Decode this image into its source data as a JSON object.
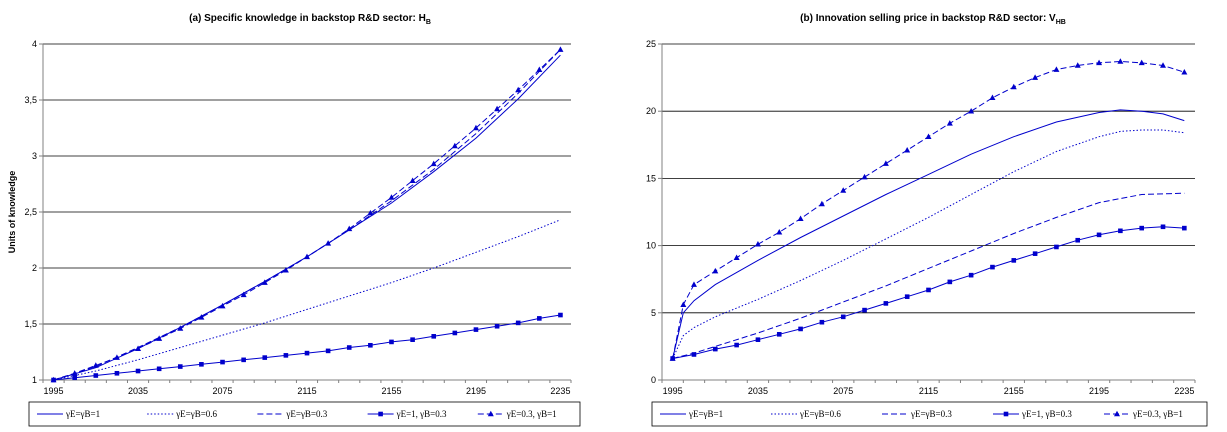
{
  "chart_data": [
    {
      "type": "line",
      "title": "(a) Specific knowledge in backstop R&D sector: H",
      "title_sub": "B",
      "xlabel": "",
      "ylabel": "Units of knowledge",
      "xlim": [
        1990,
        2240
      ],
      "ylim": [
        1,
        4
      ],
      "x_ticks": [
        1995,
        2035,
        2075,
        2115,
        2155,
        2195,
        2235
      ],
      "y_ticks": [
        1,
        1.5,
        2,
        2.5,
        3,
        3.5,
        4
      ],
      "y_tick_labels": [
        "1",
        "1,5",
        "2",
        "2,5",
        "3",
        "3,5",
        "4"
      ],
      "grid": "horizontal",
      "legend": "bottom",
      "series": [
        {
          "name": "γE=γB=1",
          "style": "solid",
          "marker": "none",
          "color": "#0000cc",
          "x": [
            1995,
            2015,
            2035,
            2055,
            2075,
            2095,
            2115,
            2135,
            2155,
            2175,
            2195,
            2215,
            2235
          ],
          "values": [
            1.0,
            1.11,
            1.28,
            1.47,
            1.67,
            1.88,
            2.1,
            2.34,
            2.58,
            2.86,
            3.16,
            3.51,
            3.9
          ]
        },
        {
          "name": "γE=γB=0.6",
          "style": "dotted",
          "marker": "none",
          "color": "#0000cc",
          "x": [
            1995,
            2015,
            2035,
            2055,
            2075,
            2095,
            2115,
            2135,
            2155,
            2175,
            2195,
            2215,
            2235
          ],
          "values": [
            1.0,
            1.08,
            1.18,
            1.29,
            1.4,
            1.51,
            1.63,
            1.75,
            1.87,
            2.0,
            2.14,
            2.28,
            2.43
          ]
        },
        {
          "name": "γE=γB=0.3",
          "style": "dashed",
          "marker": "none",
          "color": "#0000cc",
          "x": [
            1995,
            2015,
            2035,
            2055,
            2075,
            2095,
            2115,
            2135,
            2155,
            2175,
            2195,
            2215,
            2235
          ],
          "values": [
            1.0,
            1.12,
            1.29,
            1.47,
            1.67,
            1.88,
            2.1,
            2.34,
            2.6,
            2.88,
            3.2,
            3.56,
            3.95
          ]
        },
        {
          "name": "γE=1, γB=0.3",
          "style": "solid",
          "marker": "square",
          "color": "#0000cc",
          "x": [
            1995,
            2005,
            2015,
            2025,
            2035,
            2045,
            2055,
            2065,
            2075,
            2085,
            2095,
            2105,
            2115,
            2125,
            2135,
            2145,
            2155,
            2165,
            2175,
            2185,
            2195,
            2205,
            2215,
            2225,
            2235
          ],
          "values": [
            1.0,
            1.02,
            1.04,
            1.06,
            1.08,
            1.1,
            1.12,
            1.14,
            1.16,
            1.18,
            1.2,
            1.22,
            1.24,
            1.26,
            1.29,
            1.31,
            1.34,
            1.36,
            1.39,
            1.42,
            1.45,
            1.48,
            1.51,
            1.55,
            1.58
          ]
        },
        {
          "name": "γE=0.3, γB=1",
          "style": "dashed",
          "marker": "triangle",
          "color": "#0000cc",
          "x": [
            1995,
            2005,
            2015,
            2025,
            2035,
            2045,
            2055,
            2065,
            2075,
            2085,
            2095,
            2105,
            2115,
            2125,
            2135,
            2145,
            2155,
            2165,
            2175,
            2185,
            2195,
            2205,
            2215,
            2225,
            2235
          ],
          "values": [
            1.0,
            1.06,
            1.13,
            1.2,
            1.28,
            1.37,
            1.46,
            1.56,
            1.66,
            1.76,
            1.87,
            1.98,
            2.1,
            2.22,
            2.35,
            2.49,
            2.63,
            2.78,
            2.93,
            3.09,
            3.25,
            3.42,
            3.59,
            3.77,
            3.95
          ]
        }
      ]
    },
    {
      "type": "line",
      "title": "(b) Innovation selling price in backstop R&D sector: V",
      "title_sub": "HB",
      "xlabel": "",
      "ylabel": "",
      "xlim": [
        1990,
        2240
      ],
      "ylim": [
        0,
        25
      ],
      "x_ticks": [
        1995,
        2035,
        2075,
        2115,
        2155,
        2195,
        2235
      ],
      "y_ticks": [
        0,
        5,
        10,
        15,
        20,
        25
      ],
      "y_tick_labels": [
        "0",
        "5",
        "10",
        "15",
        "20",
        "25"
      ],
      "grid": "horizontal",
      "legend": "bottom",
      "series": [
        {
          "name": "γE=γB=1",
          "style": "solid",
          "marker": "none",
          "color": "#0000cc",
          "x": [
            1995,
            2000,
            2005,
            2015,
            2035,
            2055,
            2075,
            2095,
            2115,
            2135,
            2155,
            2175,
            2195,
            2205,
            2215,
            2225,
            2235
          ],
          "values": [
            1.6,
            5.0,
            5.9,
            7.1,
            8.9,
            10.6,
            12.2,
            13.8,
            15.3,
            16.8,
            18.1,
            19.2,
            19.9,
            20.1,
            20.0,
            19.8,
            19.3
          ]
        },
        {
          "name": "γE=γB=0.6",
          "style": "dotted",
          "marker": "none",
          "color": "#0000cc",
          "x": [
            1995,
            2000,
            2005,
            2015,
            2035,
            2055,
            2075,
            2095,
            2115,
            2135,
            2155,
            2175,
            2195,
            2205,
            2215,
            2225,
            2235
          ],
          "values": [
            1.6,
            3.3,
            3.9,
            4.7,
            6.0,
            7.4,
            8.9,
            10.5,
            12.1,
            13.8,
            15.5,
            17.0,
            18.1,
            18.5,
            18.6,
            18.6,
            18.4
          ]
        },
        {
          "name": "γE=γB=0.3",
          "style": "dashed",
          "marker": "none",
          "color": "#0000cc",
          "x": [
            1995,
            2005,
            2015,
            2035,
            2055,
            2075,
            2095,
            2115,
            2135,
            2155,
            2175,
            2195,
            2215,
            2235
          ],
          "values": [
            1.6,
            2.0,
            2.5,
            3.5,
            4.6,
            5.8,
            7.0,
            8.3,
            9.6,
            10.9,
            12.1,
            13.2,
            13.8,
            13.9
          ]
        },
        {
          "name": "γE=1, γB=0.3",
          "style": "solid",
          "marker": "square",
          "color": "#0000cc",
          "x": [
            1995,
            2005,
            2015,
            2025,
            2035,
            2045,
            2055,
            2065,
            2075,
            2085,
            2095,
            2105,
            2115,
            2125,
            2135,
            2145,
            2155,
            2165,
            2175,
            2185,
            2195,
            2205,
            2215,
            2225,
            2235
          ],
          "values": [
            1.6,
            1.9,
            2.3,
            2.6,
            3.0,
            3.4,
            3.8,
            4.3,
            4.7,
            5.2,
            5.7,
            6.2,
            6.7,
            7.3,
            7.8,
            8.4,
            8.9,
            9.4,
            9.9,
            10.4,
            10.8,
            11.1,
            11.3,
            11.4,
            11.3
          ]
        },
        {
          "name": "γE=0.3, γB=1",
          "style": "dashed",
          "marker": "triangle",
          "color": "#0000cc",
          "x": [
            1995,
            2000,
            2005,
            2015,
            2025,
            2035,
            2045,
            2055,
            2065,
            2075,
            2085,
            2095,
            2105,
            2115,
            2125,
            2135,
            2145,
            2155,
            2165,
            2175,
            2185,
            2195,
            2205,
            2215,
            2225,
            2235
          ],
          "values": [
            1.6,
            5.6,
            7.1,
            8.1,
            9.1,
            10.1,
            11.0,
            12.0,
            13.1,
            14.1,
            15.1,
            16.1,
            17.1,
            18.1,
            19.1,
            20.0,
            21.0,
            21.8,
            22.5,
            23.1,
            23.4,
            23.6,
            23.7,
            23.6,
            23.4,
            22.9
          ]
        }
      ]
    }
  ]
}
